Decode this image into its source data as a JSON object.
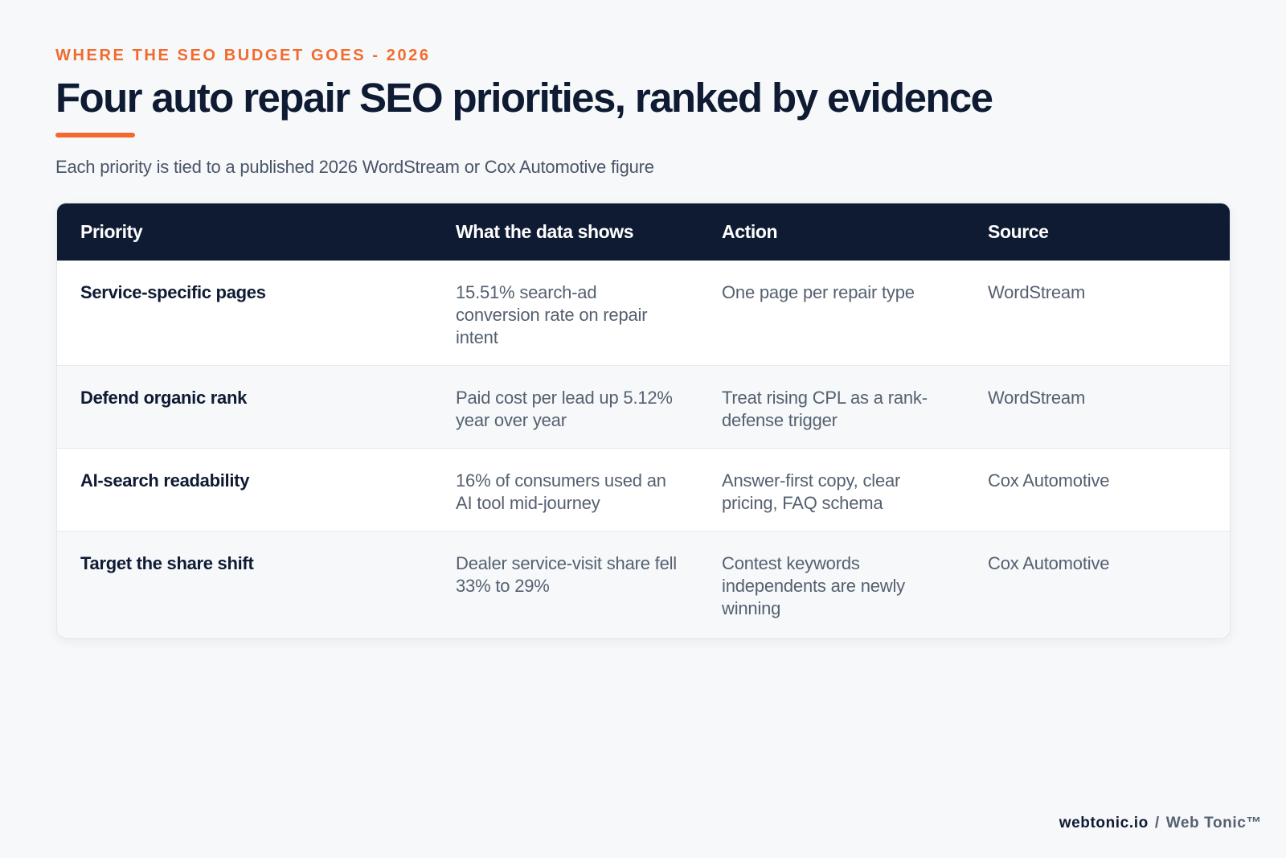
{
  "header": {
    "eyebrow": "WHERE THE SEO BUDGET GOES - 2026",
    "title": "Four auto repair SEO priorities, ranked by evidence",
    "subtitle": "Each priority is tied to a published 2026 WordStream or Cox Automotive figure"
  },
  "table": {
    "columns": [
      "Priority",
      "What the data shows",
      "Action",
      "Source"
    ],
    "rows": [
      {
        "priority": "Service-specific pages",
        "data": "15.51% search-ad conversion rate on repair intent",
        "action": "One page per repair type",
        "source": "WordStream"
      },
      {
        "priority": "Defend organic rank",
        "data": "Paid cost per lead up 5.12% year over year",
        "action": "Treat rising CPL as a rank-defense trigger",
        "source": "WordStream"
      },
      {
        "priority": "AI-search readability",
        "data": "16% of consumers used an AI tool mid-journey",
        "action": "Answer-first copy, clear pricing, FAQ schema",
        "source": "Cox Automotive"
      },
      {
        "priority": "Target the share shift",
        "data": "Dealer service-visit share fell 33% to 29%",
        "action": "Contest keywords independents are newly winning",
        "source": "Cox Automotive"
      }
    ]
  },
  "footer": {
    "site": "webtonic.io",
    "separator": "/",
    "brand": "Web Tonic™"
  },
  "colors": {
    "accent": "#f26b2e",
    "navy": "#0f1b33",
    "background": "#f6f8fa",
    "body_text": "#556070"
  }
}
